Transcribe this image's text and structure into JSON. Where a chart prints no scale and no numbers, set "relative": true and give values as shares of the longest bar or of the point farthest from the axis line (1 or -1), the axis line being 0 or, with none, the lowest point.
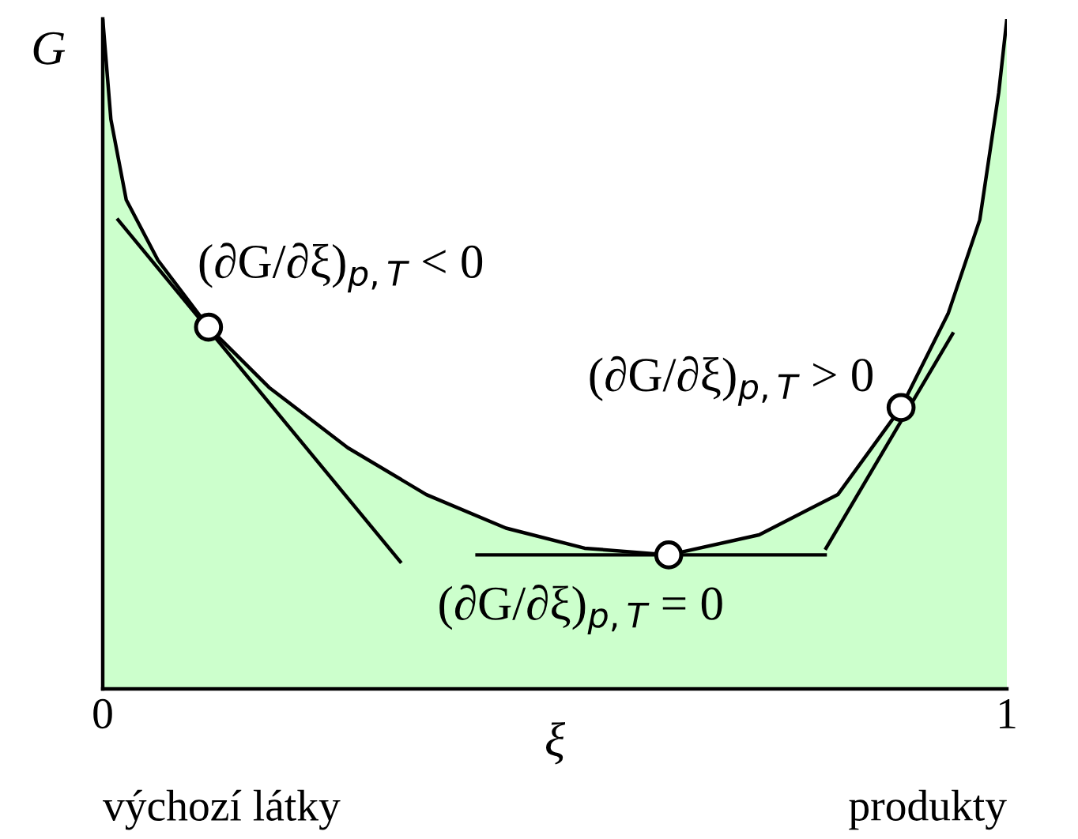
{
  "chart_data": {
    "type": "area",
    "relative": true,
    "ylabel": "G",
    "xlabel": "ξ",
    "xlim": [
      0,
      1
    ],
    "xticks": [
      0,
      1
    ],
    "x": [
      0,
      0.009,
      0.026,
      0.061,
      0.117,
      0.184,
      0.271,
      0.358,
      0.446,
      0.533,
      0.626,
      0.726,
      0.813,
      0.883,
      0.935,
      0.97,
      0.991,
      1.0
    ],
    "series": [
      {
        "color": "#ccffcc",
        "values": [
          1.0,
          0.85,
          0.73,
          0.64,
          0.54,
          0.45,
          0.36,
          0.29,
          0.24,
          0.21,
          0.2,
          0.23,
          0.29,
          0.42,
          0.56,
          0.7,
          0.89,
          1.0
        ]
      },
      {
        "type": "line",
        "color": "#000000",
        "x": [
          0.017,
          0.329
        ],
        "values": [
          0.7,
          0.19
        ]
      },
      {
        "type": "line",
        "color": "#000000",
        "x": [
          0.414,
          0.799
        ],
        "values": [
          0.2,
          0.2
        ]
      },
      {
        "type": "line",
        "color": "#000000",
        "x": [
          0.8,
          0.94
        ],
        "values": [
          0.21,
          0.53
        ]
      },
      {
        "type": "scatter",
        "color": "#ffffff",
        "marker": "circle",
        "x": [
          0.117,
          0.626,
          0.883
        ],
        "values": [
          0.54,
          0.2,
          0.42
        ]
      }
    ],
    "annotations": [
      {
        "text": "(∂G/∂ξ)$_{p,T}$ < 0",
        "x": 0.117,
        "y": 0.54
      },
      {
        "text": "(∂G/∂ξ)$_{p,T}$ > 0",
        "x": 0.883,
        "y": 0.42
      },
      {
        "text": "(∂G/∂ξ)$_{p,T}$ = 0",
        "x": 0.626,
        "y": 0.2
      },
      "výchozí látky",
      "produkty"
    ],
    "grid": false,
    "legend": false
  }
}
